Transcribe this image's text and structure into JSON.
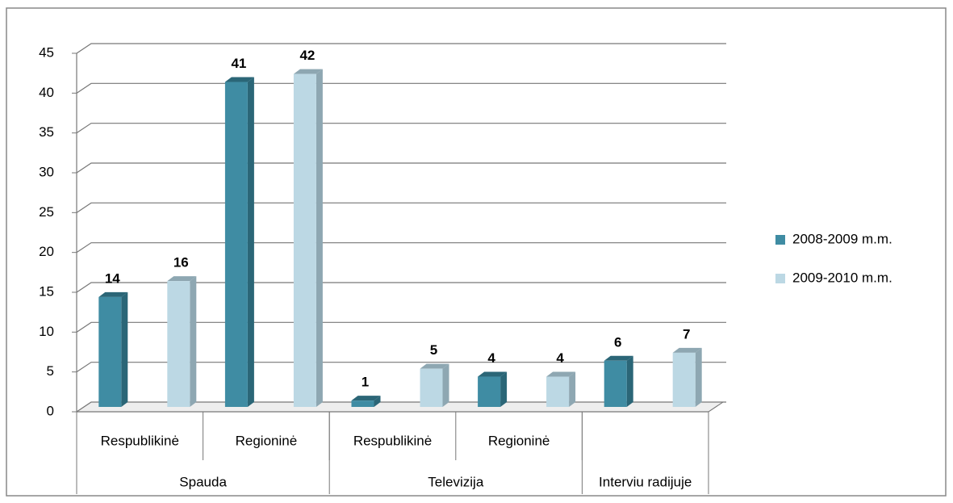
{
  "chart_data": {
    "type": "bar3d",
    "groups": [
      {
        "name": "Spauda",
        "categories": [
          "Respublikinė",
          "Regioninė"
        ]
      },
      {
        "name": "Televizija",
        "categories": [
          "Respublikinė",
          "Regioninė"
        ]
      },
      {
        "name": "Interviu radijuje",
        "categories": [
          null
        ]
      }
    ],
    "series": [
      {
        "name": "2008-2009 m.m.",
        "color": "#3f8ca3",
        "side": "#2b6677",
        "values": [
          14,
          41,
          1,
          4,
          6
        ]
      },
      {
        "name": "2009-2010 m.m.",
        "color": "#bcd8e4",
        "side": "#8ea7b2",
        "values": [
          16,
          42,
          5,
          4,
          7
        ]
      }
    ],
    "ylim": [
      0,
      45
    ],
    "yticks": [
      0,
      5,
      10,
      15,
      20,
      25,
      30,
      35,
      40,
      45
    ],
    "grid": true,
    "legend": "right"
  }
}
